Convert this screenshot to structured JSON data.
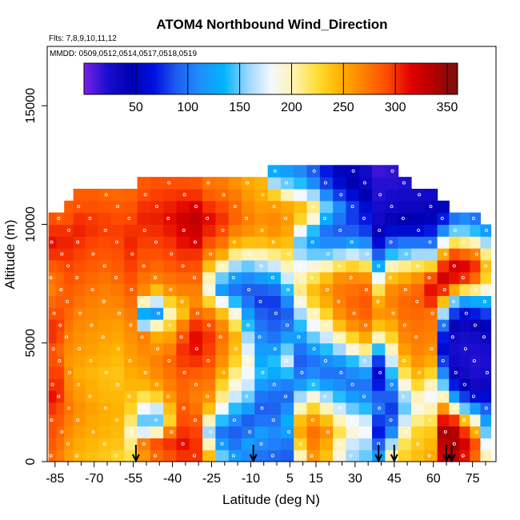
{
  "chart_data": {
    "type": "heatmap",
    "title": "ATOM4 Northbound Wind_Direction",
    "subtitle_flights": "Flts: 7,8,9,10,11,12",
    "subtitle_dates": "MMDD: 0509,0512,0514,0517,0518,0519",
    "xlabel": "Latitude (deg N)",
    "ylabel": "Altitude (m)",
    "xlim": [
      -88,
      84
    ],
    "ylim": [
      0,
      17500
    ],
    "x_ticks": [
      -85,
      -70,
      -55,
      -40,
      -25,
      -10,
      5,
      15,
      30,
      45,
      60,
      75
    ],
    "x_minor_ticks": [
      -80,
      -75,
      -65,
      -60,
      -50,
      -45,
      -35,
      -30,
      -20,
      -15,
      -5,
      0,
      10,
      20,
      25,
      35,
      40,
      50,
      55,
      65,
      70,
      80
    ],
    "y_ticks": [
      0,
      5000,
      10000,
      15000
    ],
    "colorbar": {
      "range": [
        0,
        360
      ],
      "ticks": [
        50,
        100,
        150,
        200,
        250,
        300,
        350
      ],
      "colors": [
        "#7b20e8",
        "#1a0ecf",
        "#0000b3",
        "#0010e0",
        "#1f5ff0",
        "#1e90ff",
        "#00b4ff",
        "#9ad6ff",
        "#f4f8ff",
        "#fff3b0",
        "#ffdd33",
        "#ffb000",
        "#ff7f00",
        "#ff4a00",
        "#e00000",
        "#b00000",
        "#7a1010"
      ]
    },
    "sounding_arrow_latitudes": [
      -54,
      -9,
      39,
      45,
      65,
      67
    ],
    "columns": [
      {
        "lat": -86,
        "top": 10500,
        "dirs": [
          280,
          285,
          290,
          290,
          300,
          310,
          300,
          295,
          290,
          290,
          300,
          300,
          290,
          280,
          270,
          275,
          285,
          300,
          310,
          300,
          290
        ]
      },
      {
        "lat": -83,
        "top": 10500,
        "dirs": [
          270,
          275,
          280,
          285,
          290,
          300,
          300,
          295,
          285,
          280,
          290,
          295,
          290,
          285,
          280,
          280,
          290,
          300,
          305,
          300,
          285
        ]
      },
      {
        "lat": -80,
        "top": 11000,
        "dirs": [
          255,
          260,
          265,
          270,
          275,
          270,
          265,
          265,
          260,
          265,
          270,
          275,
          280,
          285,
          285,
          290,
          295,
          300,
          305,
          300,
          290,
          285
        ]
      },
      {
        "lat": -76,
        "top": 11500,
        "dirs": [
          245,
          250,
          255,
          260,
          262,
          258,
          255,
          250,
          255,
          258,
          262,
          265,
          270,
          275,
          280,
          285,
          290,
          295,
          300,
          305,
          300,
          290,
          285
        ]
      },
      {
        "lat": -71,
        "top": 11500,
        "dirs": [
          240,
          245,
          250,
          252,
          255,
          250,
          248,
          245,
          250,
          255,
          258,
          262,
          266,
          270,
          275,
          280,
          285,
          290,
          295,
          300,
          298,
          290,
          285
        ]
      },
      {
        "lat": -66,
        "top": 11500,
        "dirs": [
          235,
          240,
          245,
          248,
          250,
          245,
          243,
          240,
          245,
          250,
          255,
          258,
          262,
          266,
          270,
          276,
          282,
          288,
          292,
          296,
          295,
          288,
          282
        ]
      },
      {
        "lat": -61,
        "top": 11500,
        "dirs": [
          230,
          238,
          242,
          245,
          246,
          244,
          240,
          238,
          242,
          246,
          252,
          256,
          262,
          268,
          274,
          280,
          286,
          290,
          294,
          296,
          292,
          286,
          280
        ]
      },
      {
        "lat": -56,
        "top": 11500,
        "dirs": [
          220,
          210,
          200,
          215,
          230,
          238,
          245,
          250,
          255,
          258,
          262,
          266,
          272,
          278,
          284,
          290,
          296,
          300,
          304,
          300,
          294,
          288,
          282
        ]
      },
      {
        "lat": -51,
        "top": 12000,
        "dirs": [
          260,
          270,
          175,
          150,
          180,
          220,
          245,
          255,
          260,
          265,
          270,
          160,
          130,
          200,
          265,
          275,
          285,
          290,
          296,
          300,
          305,
          300,
          292,
          286
        ]
      },
      {
        "lat": -46,
        "top": 12000,
        "dirs": [
          280,
          290,
          200,
          150,
          170,
          230,
          255,
          265,
          270,
          262,
          250,
          200,
          120,
          170,
          240,
          270,
          280,
          290,
          296,
          302,
          306,
          302,
          296,
          290
        ]
      },
      {
        "lat": -41,
        "top": 12000,
        "dirs": [
          290,
          300,
          270,
          230,
          240,
          260,
          270,
          276,
          280,
          270,
          255,
          230,
          200,
          230,
          262,
          276,
          286,
          294,
          300,
          308,
          312,
          306,
          298,
          290
        ]
      },
      {
        "lat": -36,
        "top": 12000,
        "dirs": [
          300,
          310,
          300,
          290,
          286,
          280,
          282,
          288,
          296,
          300,
          290,
          270,
          240,
          250,
          270,
          280,
          292,
          300,
          310,
          318,
          322,
          312,
          300,
          290
        ]
      },
      {
        "lat": -31,
        "top": 12000,
        "dirs": [
          300,
          300,
          295,
          286,
          276,
          270,
          275,
          285,
          300,
          310,
          312,
          300,
          280,
          265,
          270,
          280,
          290,
          300,
          315,
          325,
          330,
          318,
          300,
          288
        ]
      },
      {
        "lat": -26,
        "top": 12000,
        "dirs": [
          240,
          200,
          160,
          200,
          240,
          262,
          272,
          280,
          290,
          296,
          300,
          290,
          270,
          230,
          190,
          200,
          240,
          270,
          290,
          305,
          312,
          300,
          285,
          275
        ]
      },
      {
        "lat": -21,
        "top": 12000,
        "dirs": [
          150,
          120,
          100,
          140,
          180,
          210,
          230,
          250,
          262,
          270,
          276,
          265,
          240,
          180,
          120,
          150,
          200,
          250,
          276,
          292,
          300,
          292,
          280,
          272
        ]
      },
      {
        "lat": -16,
        "top": 12000,
        "dirs": [
          120,
          100,
          90,
          110,
          140,
          170,
          190,
          210,
          230,
          240,
          245,
          220,
          190,
          140,
          100,
          120,
          160,
          210,
          250,
          270,
          282,
          280,
          272,
          262
        ]
      },
      {
        "lat": -11,
        "top": 12000,
        "dirs": [
          110,
          120,
          100,
          90,
          120,
          150,
          170,
          180,
          190,
          175,
          160,
          140,
          120,
          100,
          90,
          110,
          150,
          200,
          240,
          262,
          270,
          265,
          258,
          252
        ]
      },
      {
        "lat": -6,
        "top": 12000,
        "dirs": [
          100,
          110,
          120,
          100,
          90,
          100,
          120,
          140,
          130,
          120,
          110,
          100,
          90,
          80,
          90,
          120,
          160,
          200,
          240,
          255,
          262,
          256,
          250,
          246
        ]
      },
      {
        "lat": -1,
        "top": 12500,
        "dirs": [
          95,
          105,
          110,
          100,
          92,
          96,
          110,
          130,
          140,
          120,
          100,
          90,
          85,
          80,
          95,
          130,
          170,
          210,
          246,
          262,
          266,
          258,
          232,
          160,
          130
        ]
      },
      {
        "lat": 4,
        "top": 12500,
        "dirs": [
          90,
          100,
          120,
          130,
          110,
          95,
          105,
          140,
          170,
          150,
          120,
          100,
          90,
          110,
          140,
          170,
          200,
          220,
          240,
          252,
          258,
          250,
          200,
          150,
          120
        ]
      },
      {
        "lat": 9,
        "top": 12500,
        "dirs": [
          200,
          230,
          250,
          240,
          200,
          160,
          120,
          100,
          90,
          100,
          120,
          140,
          160,
          190,
          210,
          200,
          180,
          160,
          150,
          180,
          230,
          240,
          180,
          140,
          110
        ]
      },
      {
        "lat": 14,
        "top": 12500,
        "dirs": [
          260,
          270,
          276,
          260,
          230,
          190,
          140,
          110,
          100,
          120,
          150,
          180,
          200,
          230,
          240,
          220,
          190,
          150,
          120,
          140,
          190,
          210,
          160,
          110,
          90
        ]
      },
      {
        "lat": 19,
        "top": 12500,
        "dirs": [
          240,
          250,
          262,
          240,
          200,
          160,
          120,
          100,
          110,
          140,
          170,
          200,
          230,
          250,
          256,
          240,
          200,
          150,
          110,
          100,
          130,
          150,
          110,
          80,
          70
        ]
      },
      {
        "lat": 24,
        "top": 12500,
        "dirs": [
          190,
          200,
          220,
          200,
          170,
          140,
          110,
          100,
          120,
          160,
          200,
          240,
          262,
          270,
          272,
          262,
          220,
          160,
          110,
          90,
          100,
          110,
          80,
          60,
          50
        ]
      },
      {
        "lat": 29,
        "top": 12500,
        "dirs": [
          160,
          170,
          190,
          180,
          150,
          120,
          100,
          110,
          140,
          190,
          230,
          262,
          276,
          280,
          276,
          264,
          230,
          170,
          120,
          90,
          80,
          80,
          60,
          45,
          40
        ]
      },
      {
        "lat": 34,
        "top": 12500,
        "dirs": [
          150,
          160,
          180,
          170,
          140,
          110,
          100,
          120,
          160,
          210,
          250,
          272,
          282,
          286,
          280,
          262,
          220,
          160,
          110,
          80,
          70,
          60,
          45,
          35,
          30
        ]
      },
      {
        "lat": 39,
        "top": 12500,
        "dirs": [
          120,
          90,
          70,
          80,
          100,
          90,
          70,
          60,
          80,
          140,
          200,
          240,
          260,
          250,
          220,
          180,
          130,
          90,
          60,
          40,
          30,
          25,
          20,
          20,
          15
        ]
      },
      {
        "lat": 44,
        "top": 12500,
        "dirs": [
          200,
          160,
          110,
          90,
          80,
          90,
          110,
          140,
          170,
          200,
          230,
          250,
          262,
          270,
          264,
          240,
          200,
          140,
          90,
          60,
          40,
          30,
          25,
          20,
          18
        ]
      },
      {
        "lat": 49,
        "top": 12000,
        "dirs": [
          230,
          220,
          200,
          170,
          150,
          160,
          190,
          220,
          240,
          256,
          266,
          272,
          278,
          280,
          272,
          250,
          210,
          150,
          100,
          60,
          45,
          35,
          28,
          22
        ]
      },
      {
        "lat": 54,
        "top": 11500,
        "dirs": [
          240,
          236,
          230,
          210,
          190,
          200,
          226,
          246,
          260,
          268,
          272,
          276,
          280,
          284,
          280,
          262,
          220,
          160,
          100,
          60,
          45,
          35,
          28
        ]
      },
      {
        "lat": 59,
        "top": 11500,
        "dirs": [
          250,
          244,
          236,
          220,
          200,
          180,
          200,
          230,
          250,
          262,
          268,
          272,
          276,
          300,
          310,
          290,
          230,
          160,
          100,
          70,
          50,
          40,
          30
        ]
      },
      {
        "lat": 64,
        "top": 11000,
        "dirs": [
          320,
          330,
          340,
          310,
          260,
          200,
          150,
          110,
          80,
          60,
          70,
          100,
          160,
          240,
          300,
          320,
          300,
          250,
          180,
          110,
          70,
          50
        ]
      },
      {
        "lat": 68,
        "top": 10500,
        "dirs": [
          330,
          340,
          335,
          300,
          200,
          120,
          70,
          40,
          30,
          25,
          30,
          40,
          80,
          150,
          250,
          310,
          320,
          290,
          220,
          150,
          100
        ]
      },
      {
        "lat": 72,
        "top": 10500,
        "dirs": [
          310,
          320,
          300,
          240,
          150,
          80,
          45,
          30,
          25,
          22,
          26,
          35,
          60,
          120,
          220,
          300,
          315,
          280,
          210,
          150,
          110
        ]
      },
      {
        "lat": 76,
        "top": 10500,
        "dirs": [
          280,
          290,
          250,
          190,
          120,
          60,
          30,
          22,
          20,
          22,
          28,
          40,
          70,
          130,
          210,
          280,
          300,
          270,
          200,
          140,
          100
        ]
      },
      {
        "lat": 80,
        "top": 10000,
        "dirs": [
          200,
          180,
          150,
          120,
          90,
          60,
          35,
          25,
          22,
          26,
          34,
          48,
          80,
          130,
          190,
          230,
          240,
          210,
          160,
          120
        ]
      }
    ]
  }
}
